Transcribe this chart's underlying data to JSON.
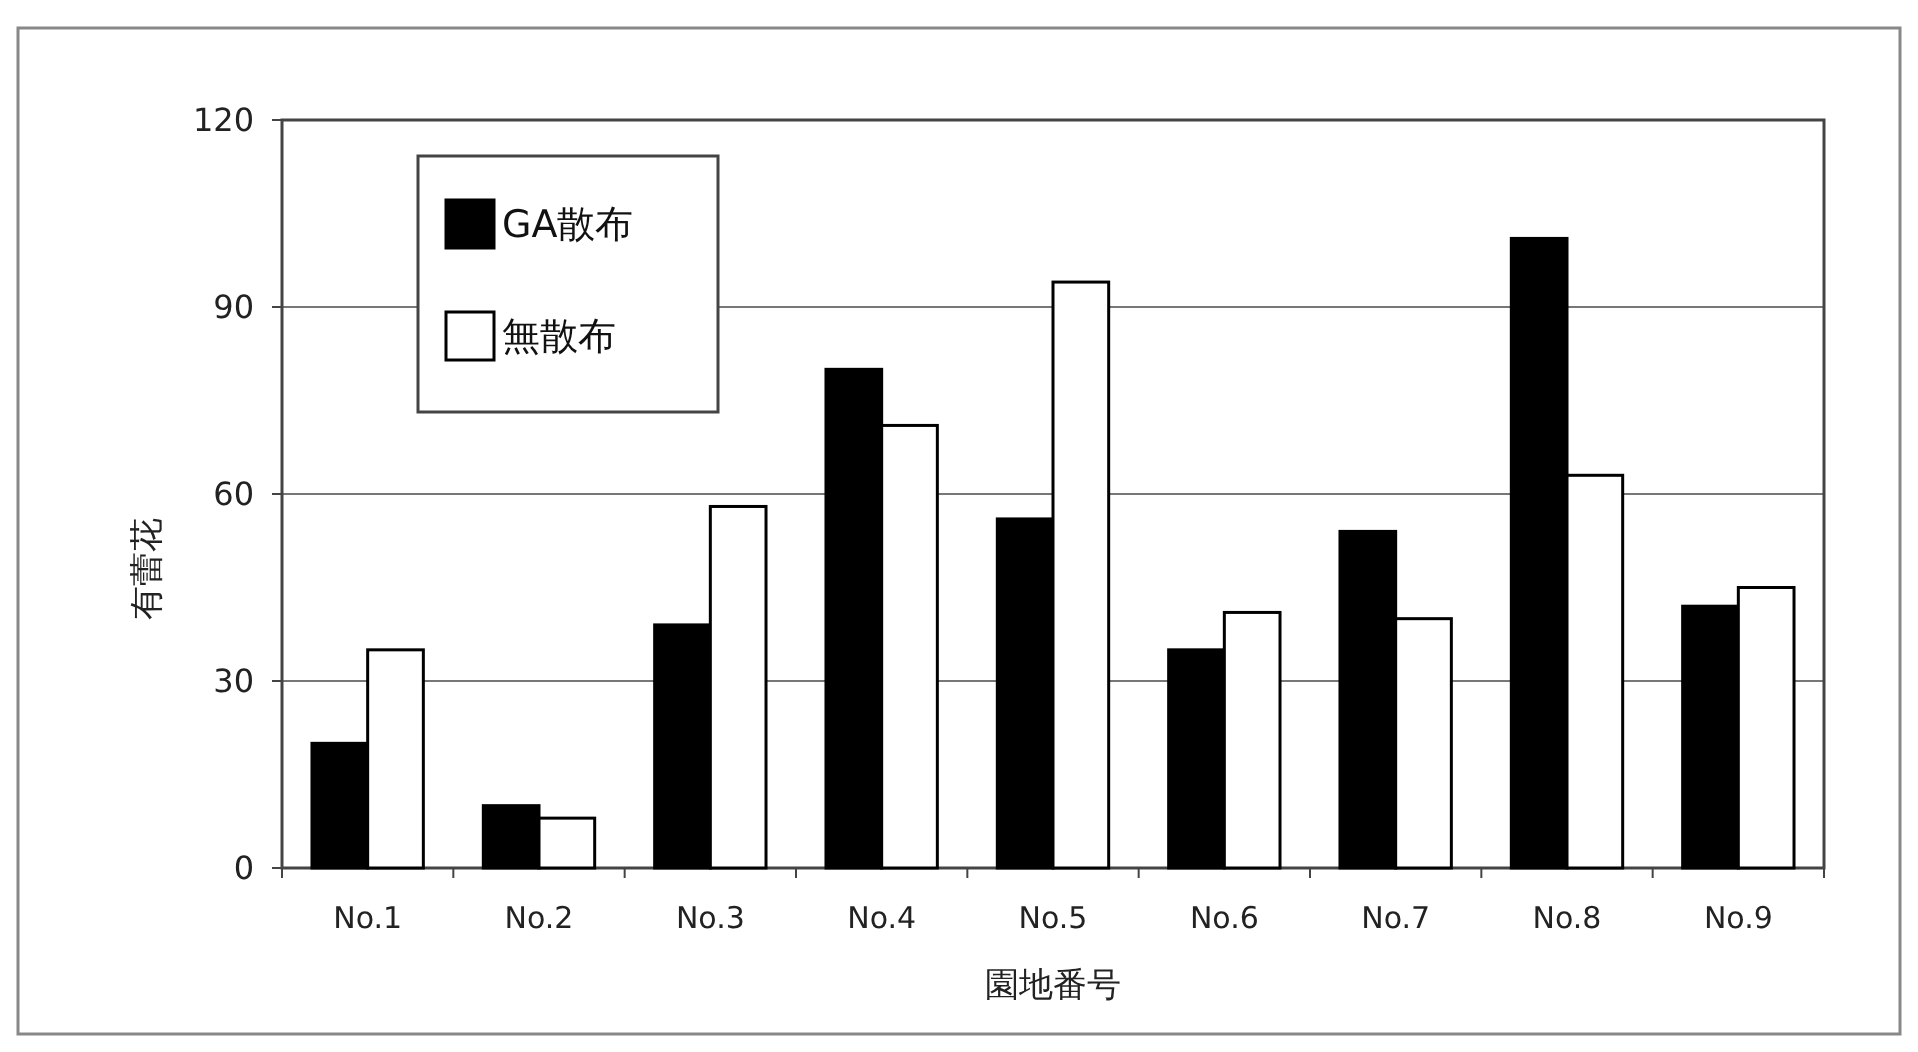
{
  "chart_data": {
    "type": "bar",
    "xlabel": "園地番号",
    "ylabel": "有蕾花",
    "categories": [
      "No.1",
      "No.2",
      "No.3",
      "No.4",
      "No.5",
      "No.6",
      "No.7",
      "No.8",
      "No.9"
    ],
    "series": [
      {
        "name": "GA散布",
        "color": "#000000",
        "values": [
          20,
          10,
          39,
          80,
          56,
          35,
          54,
          101,
          42
        ]
      },
      {
        "name": "無散布",
        "color": "#ffffff",
        "values": [
          35,
          8,
          58,
          71,
          94,
          41,
          40,
          63,
          45
        ]
      }
    ],
    "ylim": [
      0,
      120
    ],
    "yticks": [
      0,
      30,
      60,
      90,
      120
    ],
    "grid": "y",
    "legend": "top left"
  }
}
